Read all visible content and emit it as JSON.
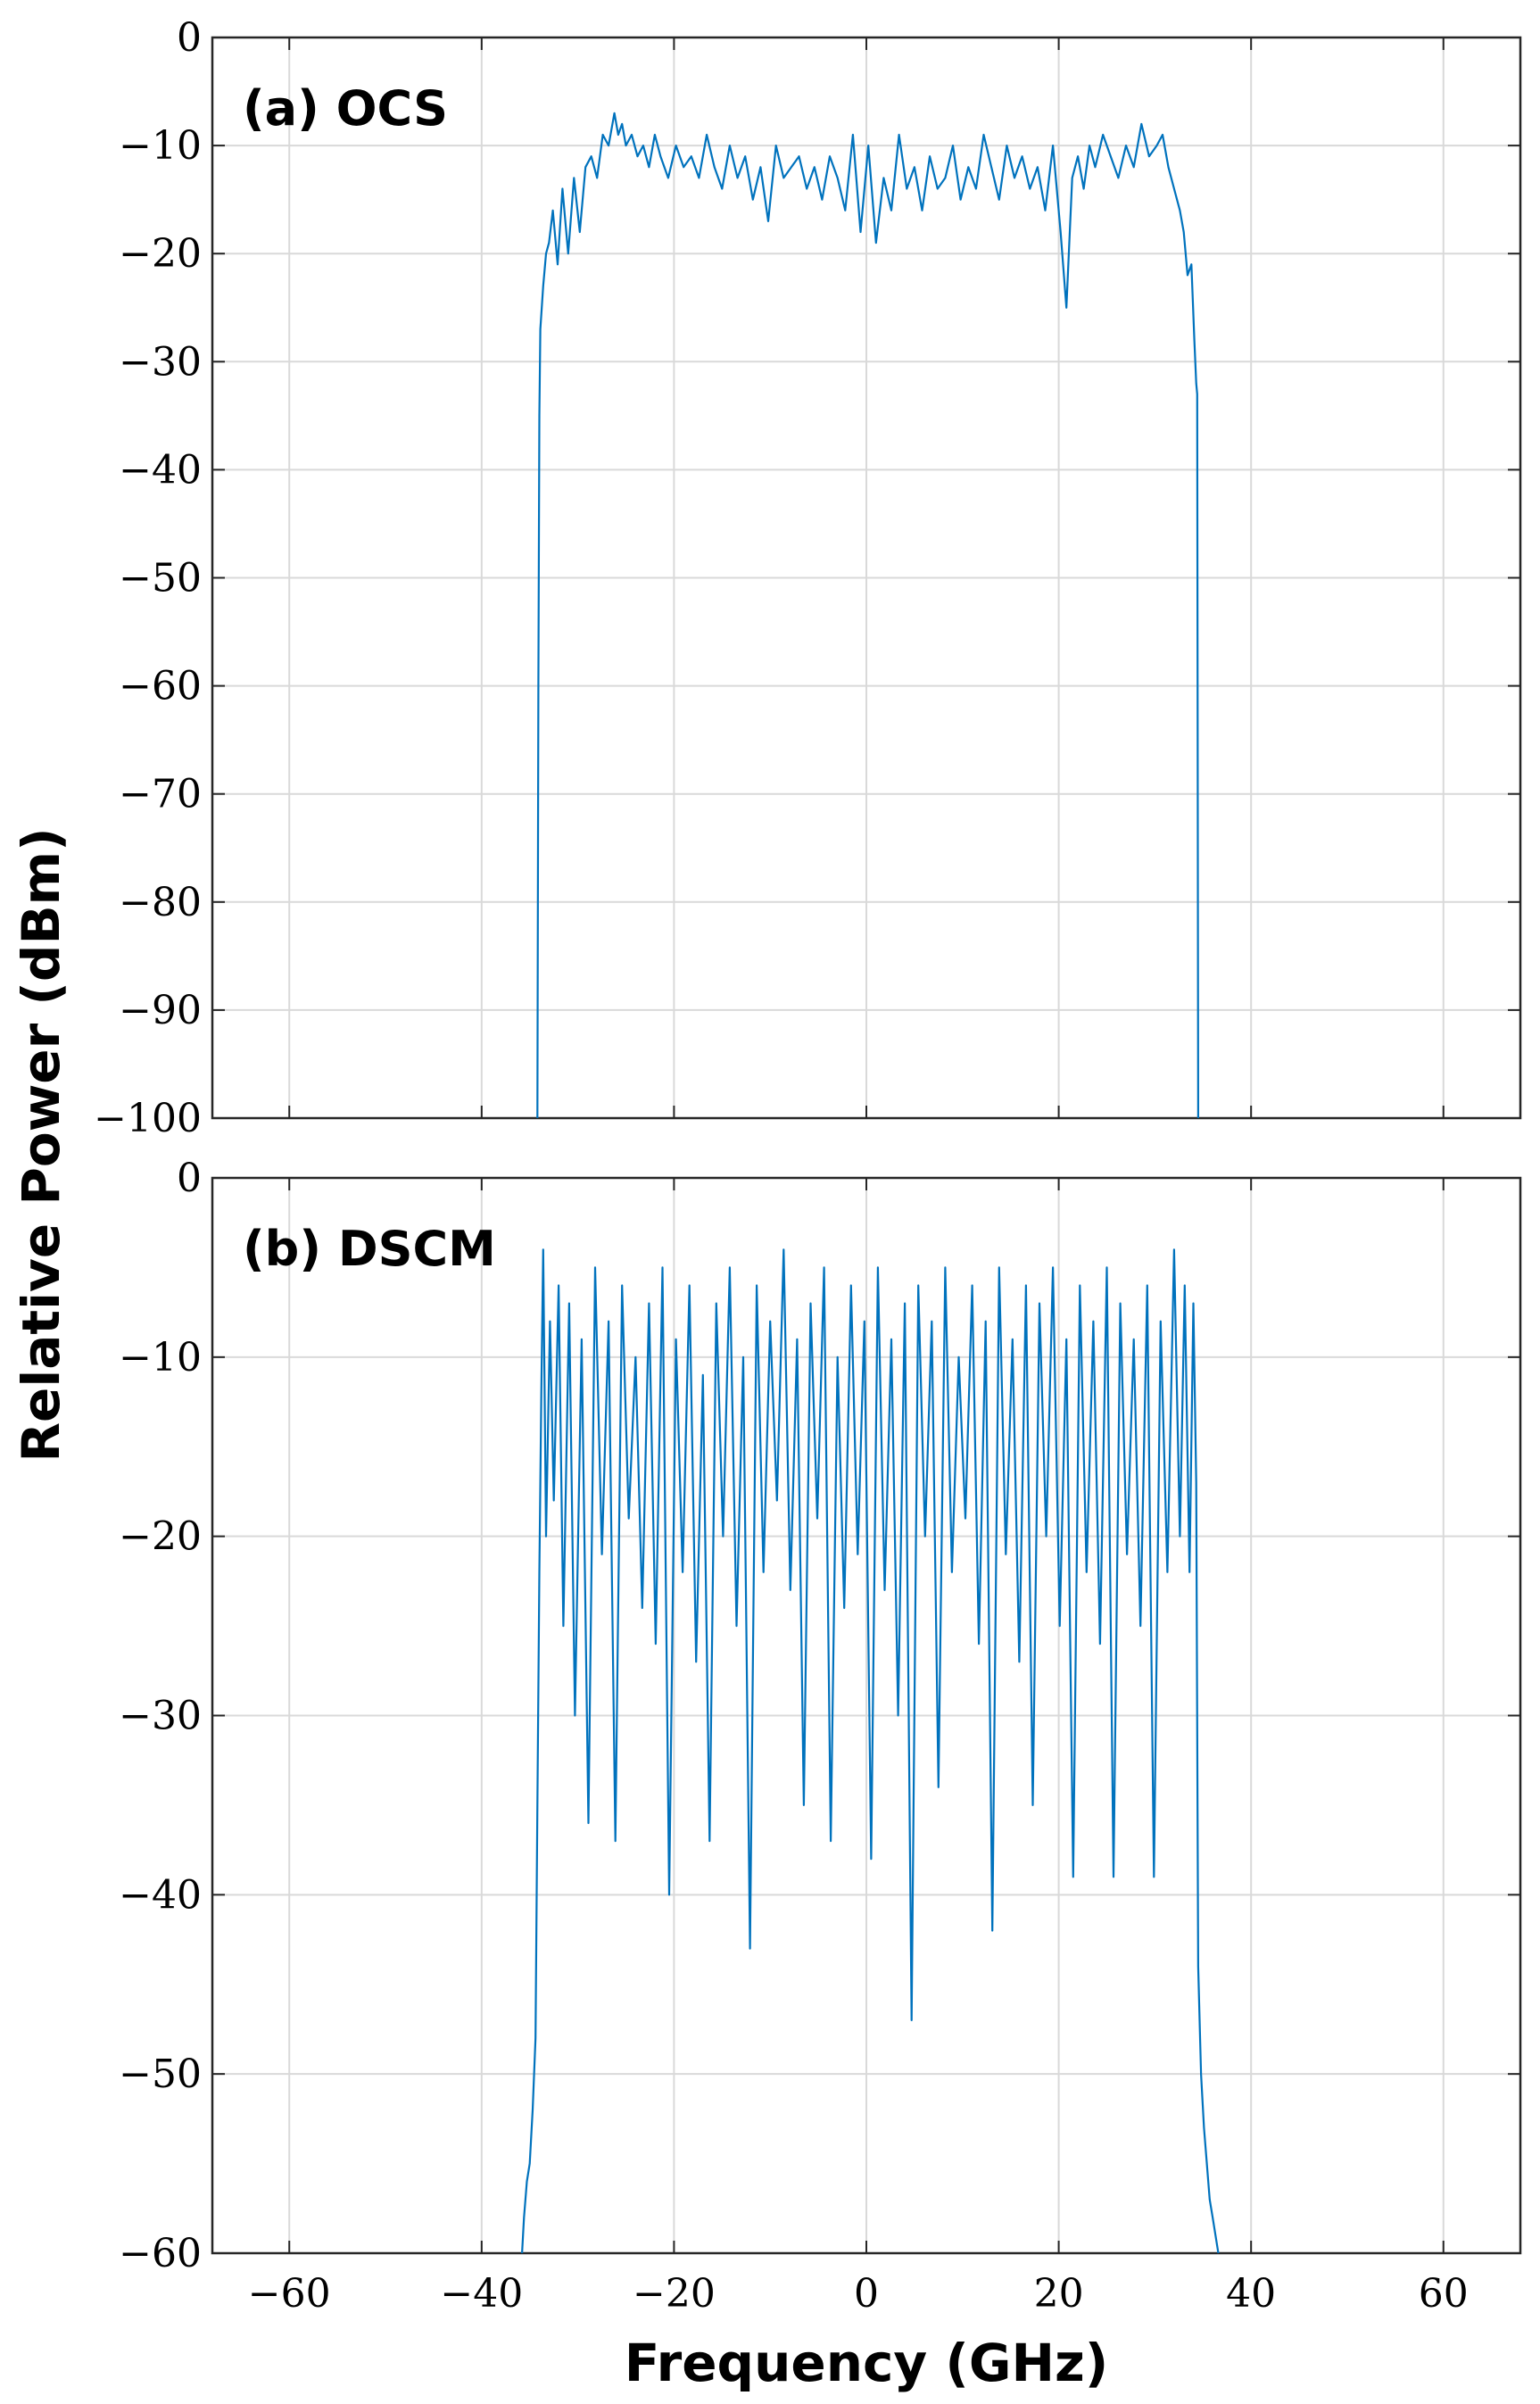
{
  "chart_data": {
    "type": "line",
    "xlabel": "Frequency (GHz)",
    "ylabel": "Relative Power (dBm)",
    "line_color": "#0072BD",
    "grid": true,
    "shared_x": true,
    "xlim": [
      -68,
      68
    ],
    "xticks": [
      -60,
      -40,
      -20,
      0,
      20,
      40,
      60
    ],
    "xtick_labels": [
      "−60",
      "−40",
      "−20",
      "0",
      "20",
      "40",
      "60"
    ],
    "panels": [
      {
        "id": "ocs",
        "title": "(a) OCS",
        "ylim": [
          -100,
          0
        ],
        "yticks": [
          0,
          -10,
          -20,
          -30,
          -40,
          -50,
          -60,
          -70,
          -80,
          -90,
          -100
        ],
        "ytick_labels": [
          "0",
          "−10",
          "−20",
          "−30",
          "−40",
          "−50",
          "−60",
          "−70",
          "−80",
          "−90",
          "−100"
        ],
        "series": [
          {
            "x": [
              -34.2,
              -34.1,
              -34.0,
              -33.9,
              -33.6,
              -33.3,
              -33.0,
              -32.6,
              -32.1,
              -31.6,
              -31.0,
              -30.4,
              -29.8,
              -29.2,
              -28.6,
              -28.0,
              -27.4,
              -26.8,
              -26.2,
              -25.8,
              -25.4,
              -25.0,
              -24.4,
              -23.8,
              -23.2,
              -22.6,
              -22.0,
              -21.4,
              -20.6,
              -19.8,
              -19.0,
              -18.2,
              -17.4,
              -16.6,
              -15.8,
              -15.0,
              -14.2,
              -13.4,
              -12.6,
              -11.8,
              -11.0,
              -10.2,
              -9.4,
              -8.6,
              -7.8,
              -7.0,
              -6.2,
              -5.4,
              -4.6,
              -3.8,
              -3.0,
              -2.2,
              -1.4,
              -0.6,
              0.2,
              1.0,
              1.8,
              2.6,
              3.4,
              4.2,
              5.0,
              5.8,
              6.6,
              7.4,
              8.2,
              9.0,
              9.8,
              10.6,
              11.4,
              12.2,
              13.0,
              13.8,
              14.6,
              15.4,
              16.2,
              17.0,
              17.8,
              18.6,
              19.4,
              20.2,
              20.8,
              21.4,
              22.0,
              22.6,
              23.2,
              23.8,
              24.6,
              25.4,
              26.2,
              27.0,
              27.8,
              28.6,
              29.4,
              30.2,
              30.8,
              31.4,
              32.0,
              32.6,
              33.0,
              33.4,
              33.8,
              34.1,
              34.3,
              34.4,
              34.5
            ],
            "y": [
              -100,
              -60,
              -35,
              -27,
              -23,
              -20,
              -19,
              -16,
              -21,
              -14,
              -20,
              -13,
              -18,
              -12,
              -11,
              -13,
              -9,
              -10,
              -7,
              -9,
              -8,
              -10,
              -9,
              -11,
              -10,
              -12,
              -9,
              -11,
              -13,
              -10,
              -12,
              -11,
              -13,
              -9,
              -12,
              -14,
              -10,
              -13,
              -11,
              -15,
              -12,
              -17,
              -10,
              -13,
              -12,
              -11,
              -14,
              -12,
              -15,
              -11,
              -13,
              -16,
              -9,
              -18,
              -10,
              -19,
              -13,
              -16,
              -9,
              -14,
              -12,
              -16,
              -11,
              -14,
              -13,
              -10,
              -15,
              -12,
              -14,
              -9,
              -12,
              -15,
              -10,
              -13,
              -11,
              -14,
              -12,
              -16,
              -10,
              -18,
              -25,
              -13,
              -11,
              -14,
              -10,
              -12,
              -9,
              -11,
              -13,
              -10,
              -12,
              -8,
              -11,
              -10,
              -9,
              -12,
              -14,
              -16,
              -18,
              -22,
              -21,
              -28,
              -32,
              -33,
              -100
            ]
          }
        ]
      },
      {
        "id": "dscm",
        "title": "(b) DSCM",
        "ylim": [
          -60,
          0
        ],
        "yticks": [
          0,
          -10,
          -20,
          -30,
          -40,
          -50,
          -60
        ],
        "ytick_labels": [
          "0",
          "−10",
          "−20",
          "−30",
          "−40",
          "−50",
          "−60"
        ],
        "series": [
          {
            "x": [
              -35.8,
              -35.6,
              -35.3,
              -35.0,
              -34.7,
              -34.4,
              -34.2,
              -34.0,
              -33.8,
              -33.6,
              -33.3,
              -32.9,
              -32.5,
              -32.0,
              -31.5,
              -30.9,
              -30.3,
              -29.6,
              -28.9,
              -28.2,
              -27.5,
              -26.8,
              -26.1,
              -25.4,
              -24.7,
              -24.0,
              -23.3,
              -22.6,
              -21.9,
              -21.2,
              -20.5,
              -19.8,
              -19.1,
              -18.4,
              -17.7,
              -17.0,
              -16.3,
              -15.6,
              -14.9,
              -14.2,
              -13.5,
              -12.8,
              -12.1,
              -11.4,
              -10.7,
              -10.0,
              -9.3,
              -8.6,
              -7.9,
              -7.2,
              -6.5,
              -5.8,
              -5.1,
              -4.4,
              -3.7,
              -3.0,
              -2.3,
              -1.6,
              -0.9,
              -0.2,
              0.5,
              1.2,
              1.9,
              2.6,
              3.3,
              4.0,
              4.7,
              5.4,
              6.1,
              6.8,
              7.5,
              8.2,
              8.9,
              9.6,
              10.3,
              11.0,
              11.7,
              12.4,
              13.1,
              13.8,
              14.5,
              15.2,
              15.9,
              16.6,
              17.3,
              18.0,
              18.7,
              19.4,
              20.1,
              20.8,
              21.5,
              22.2,
              22.9,
              23.6,
              24.3,
              25.0,
              25.7,
              26.4,
              27.1,
              27.8,
              28.5,
              29.2,
              29.9,
              30.6,
              31.3,
              32.0,
              32.6,
              33.1,
              33.6,
              34.0,
              34.3,
              34.5,
              34.8,
              35.1,
              35.4,
              35.7,
              36.0,
              36.3,
              36.6
            ],
            "y": [
              -60,
              -58,
              -56,
              -55,
              -52,
              -48,
              -35,
              -22,
              -12,
              -4,
              -20,
              -8,
              -18,
              -6,
              -25,
              -7,
              -30,
              -9,
              -36,
              -5,
              -21,
              -8,
              -37,
              -6,
              -19,
              -10,
              -24,
              -7,
              -26,
              -5,
              -40,
              -9,
              -22,
              -6,
              -27,
              -11,
              -37,
              -7,
              -20,
              -5,
              -25,
              -10,
              -43,
              -6,
              -22,
              -8,
              -18,
              -4,
              -23,
              -9,
              -35,
              -7,
              -19,
              -5,
              -37,
              -10,
              -24,
              -6,
              -21,
              -8,
              -38,
              -5,
              -23,
              -9,
              -30,
              -7,
              -47,
              -6,
              -20,
              -8,
              -34,
              -5,
              -22,
              -10,
              -19,
              -6,
              -26,
              -8,
              -42,
              -5,
              -21,
              -9,
              -27,
              -6,
              -35,
              -7,
              -20,
              -5,
              -25,
              -9,
              -39,
              -6,
              -22,
              -8,
              -26,
              -5,
              -39,
              -7,
              -21,
              -9,
              -25,
              -6,
              -39,
              -8,
              -22,
              -4,
              -20,
              -6,
              -22,
              -7,
              -17,
              -44,
              -50,
              -53,
              -55,
              -57,
              -58,
              -59,
              -60
            ]
          }
        ]
      }
    ]
  }
}
